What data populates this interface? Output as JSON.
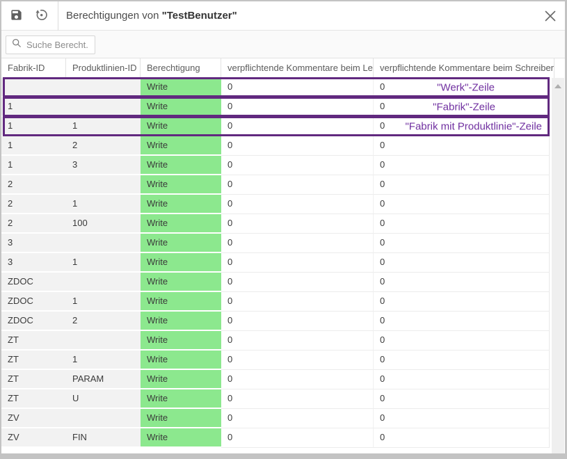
{
  "dialog": {
    "title_prefix": "Berechtigungen von ",
    "title_bold": "\"TestBenutzer\""
  },
  "toolbar": {
    "icons": [
      "save-icon",
      "restore-icon",
      "close-icon"
    ]
  },
  "search": {
    "placeholder": "Suche Berecht..."
  },
  "table": {
    "columns": [
      "Fabrik-ID",
      "Produktlinien-ID",
      "Berechtigung",
      "verpflichtende Kommentare beim Lesen",
      "verpflichtende Kommentare beim Schreiben"
    ],
    "rows": [
      {
        "fabrik_id": "",
        "produktlinien_id": "",
        "berechtigung": "Write",
        "lesen": "0",
        "schreiben": "0"
      },
      {
        "fabrik_id": "1",
        "produktlinien_id": "",
        "berechtigung": "Write",
        "lesen": "0",
        "schreiben": "0"
      },
      {
        "fabrik_id": "1",
        "produktlinien_id": "1",
        "berechtigung": "Write",
        "lesen": "0",
        "schreiben": "0"
      },
      {
        "fabrik_id": "1",
        "produktlinien_id": "2",
        "berechtigung": "Write",
        "lesen": "0",
        "schreiben": "0"
      },
      {
        "fabrik_id": "1",
        "produktlinien_id": "3",
        "berechtigung": "Write",
        "lesen": "0",
        "schreiben": "0"
      },
      {
        "fabrik_id": "2",
        "produktlinien_id": "",
        "berechtigung": "Write",
        "lesen": "0",
        "schreiben": "0"
      },
      {
        "fabrik_id": "2",
        "produktlinien_id": "1",
        "berechtigung": "Write",
        "lesen": "0",
        "schreiben": "0"
      },
      {
        "fabrik_id": "2",
        "produktlinien_id": "100",
        "berechtigung": "Write",
        "lesen": "0",
        "schreiben": "0"
      },
      {
        "fabrik_id": "3",
        "produktlinien_id": "",
        "berechtigung": "Write",
        "lesen": "0",
        "schreiben": "0"
      },
      {
        "fabrik_id": "3",
        "produktlinien_id": "1",
        "berechtigung": "Write",
        "lesen": "0",
        "schreiben": "0"
      },
      {
        "fabrik_id": "ZDOC",
        "produktlinien_id": "",
        "berechtigung": "Write",
        "lesen": "0",
        "schreiben": "0"
      },
      {
        "fabrik_id": "ZDOC",
        "produktlinien_id": "1",
        "berechtigung": "Write",
        "lesen": "0",
        "schreiben": "0"
      },
      {
        "fabrik_id": "ZDOC",
        "produktlinien_id": "2",
        "berechtigung": "Write",
        "lesen": "0",
        "schreiben": "0"
      },
      {
        "fabrik_id": "ZT",
        "produktlinien_id": "",
        "berechtigung": "Write",
        "lesen": "0",
        "schreiben": "0"
      },
      {
        "fabrik_id": "ZT",
        "produktlinien_id": "1",
        "berechtigung": "Write",
        "lesen": "0",
        "schreiben": "0"
      },
      {
        "fabrik_id": "ZT",
        "produktlinien_id": "PARAM",
        "berechtigung": "Write",
        "lesen": "0",
        "schreiben": "0"
      },
      {
        "fabrik_id": "ZT",
        "produktlinien_id": "U",
        "berechtigung": "Write",
        "lesen": "0",
        "schreiben": "0"
      },
      {
        "fabrik_id": "ZV",
        "produktlinien_id": "",
        "berechtigung": "Write",
        "lesen": "0",
        "schreiben": "0"
      },
      {
        "fabrik_id": "ZV",
        "produktlinien_id": "FIN",
        "berechtigung": "Write",
        "lesen": "0",
        "schreiben": "0"
      }
    ]
  },
  "annotations": [
    {
      "row": 0,
      "label": "\"Werk\"-Zeile"
    },
    {
      "row": 1,
      "label": "\"Fabrik\"-Zeile"
    },
    {
      "row": 2,
      "label": "\"Fabrik mit Produktlinie\"-Zeile"
    }
  ],
  "colors": {
    "highlight_green": "#8ce88e",
    "annotation_text_purple": "#7030a0",
    "annotation_border_purple": "#61297f"
  }
}
